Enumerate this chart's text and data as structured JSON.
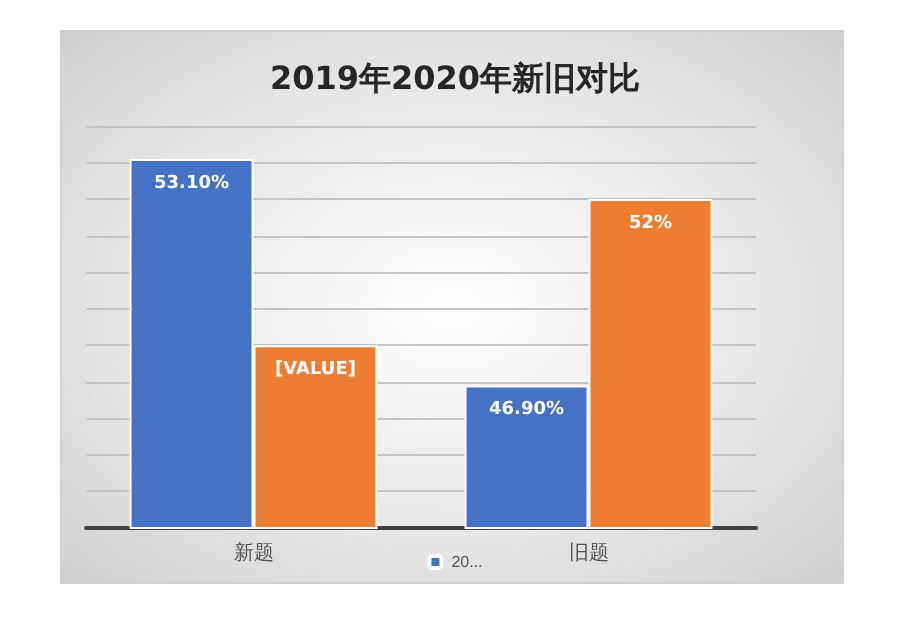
{
  "chart_data": {
    "type": "bar",
    "title": "2019年2020年新旧对比",
    "categories": [
      "新题",
      "旧题"
    ],
    "series": [
      {
        "name": "20...",
        "color": "#4472c4",
        "values": [
          53.1,
          46.9
        ],
        "value_labels": [
          "53.10%",
          "46.90%"
        ]
      },
      {
        "color": "#ed7d31",
        "values": [
          48,
          52
        ],
        "value_labels": [
          "[VALUE]",
          "52%"
        ]
      }
    ],
    "ylim": [
      43,
      54
    ],
    "yticks": [
      {
        "value": 43,
        "label": null
      },
      {
        "value": 44,
        "label": null
      },
      {
        "value": 45,
        "label": null
      },
      {
        "value": 46,
        "label": null
      },
      {
        "value": 47,
        "label": null
      },
      {
        "value": 48,
        "label": null
      },
      {
        "value": 49,
        "label": null
      },
      {
        "value": 50,
        "label": null
      },
      {
        "value": 51,
        "label": null
      },
      {
        "value": 52,
        "label": null
      },
      {
        "value": 53,
        "label": null
      },
      {
        "value": 54,
        "label": null
      }
    ],
    "grid": "y",
    "legend": "bottom",
    "tick_labels": "x"
  }
}
